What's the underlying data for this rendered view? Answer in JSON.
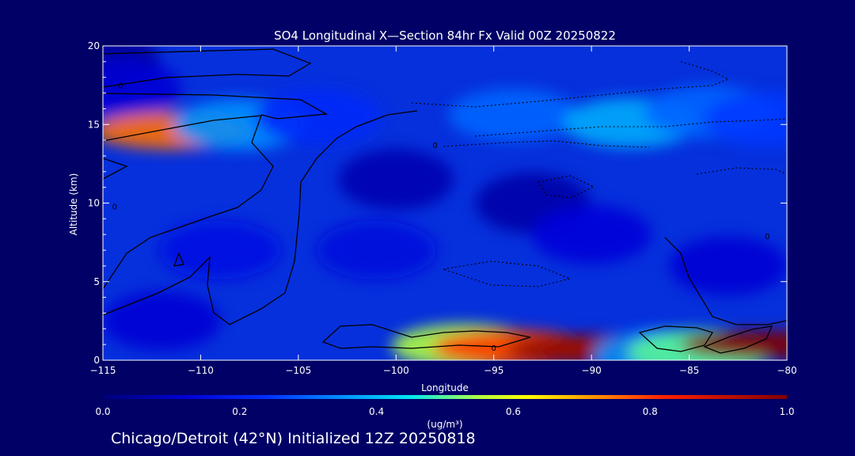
{
  "title": "SO4 Longitudinal X—Section 84hr  Fx Valid 00Z 20250822",
  "footer": "Chicago/Detroit (42°N) Initialized 12Z 20250818",
  "chart_data": {
    "type": "heatmap",
    "title": "SO4 Longitudinal X—Section 84hr  Fx Valid 00Z 20250822",
    "xlabel": "Longitude",
    "ylabel": "Altitude (km)",
    "xlim": [
      -115,
      -80
    ],
    "ylim": [
      0,
      20
    ],
    "x_ticks": [
      -115,
      -110,
      -105,
      -100,
      -95,
      -90,
      -85,
      -80
    ],
    "x_tick_labels": [
      "−115",
      "−110",
      "−105",
      "−100",
      "−95",
      "−90",
      "−85",
      "−80"
    ],
    "y_ticks": [
      0,
      5,
      10,
      15,
      20
    ],
    "y_tick_labels": [
      "0",
      "5",
      "10",
      "15",
      "20"
    ],
    "colorbar": {
      "min": 0.0,
      "max": 1.0,
      "ticks": [
        0.0,
        0.2,
        0.4,
        0.6,
        0.8,
        1.0
      ],
      "tick_labels": [
        "0.0",
        "0.2",
        "0.4",
        "0.6",
        "0.8",
        "1.0"
      ],
      "units": "(ug/m³)"
    },
    "contour_labels": [
      {
        "text": "0",
        "lon": -114.1,
        "alt": 17.5
      },
      {
        "text": "0",
        "lon": -98.0,
        "alt": 13.7
      },
      {
        "text": "0",
        "lon": -114.4,
        "alt": 9.8
      },
      {
        "text": "0",
        "lon": -81.0,
        "alt": 7.9
      },
      {
        "text": "0",
        "lon": -95.0,
        "alt": 0.8
      }
    ],
    "features": [
      {
        "lon": -115,
        "alt": 19.0,
        "value": 0.04
      },
      {
        "lon": -114,
        "alt": 17.3,
        "value": 0.12
      },
      {
        "lon": -111.5,
        "alt": 14.6,
        "value": 0.75
      },
      {
        "lon": -108,
        "alt": 15.0,
        "value": 0.35
      },
      {
        "lon": -104,
        "alt": 15.5,
        "value": 0.22
      },
      {
        "lon": -94,
        "alt": 15.6,
        "value": 0.3
      },
      {
        "lon": -88,
        "alt": 15.1,
        "value": 0.38
      },
      {
        "lon": -84,
        "alt": 15.8,
        "value": 0.3
      },
      {
        "lon": -81,
        "alt": 15.3,
        "value": 0.25
      },
      {
        "lon": -100,
        "alt": 11.5,
        "value": 0.07
      },
      {
        "lon": -93,
        "alt": 10.0,
        "value": 0.06
      },
      {
        "lon": -109,
        "alt": 7.0,
        "value": 0.16
      },
      {
        "lon": -101,
        "alt": 7.0,
        "value": 0.14
      },
      {
        "lon": -90,
        "alt": 8.0,
        "value": 0.13
      },
      {
        "lon": -83,
        "alt": 6.0,
        "value": 0.12
      },
      {
        "lon": -112,
        "alt": 2.5,
        "value": 0.12
      },
      {
        "lon": -96.5,
        "alt": 0.9,
        "value": 0.55
      },
      {
        "lon": -94,
        "alt": 0.8,
        "value": 0.8
      },
      {
        "lon": -90,
        "alt": 0.7,
        "value": 0.98
      },
      {
        "lon": -86.5,
        "alt": 0.3,
        "value": 0.35
      },
      {
        "lon": -84.5,
        "alt": 0.5,
        "value": 0.5
      },
      {
        "lon": -81,
        "alt": 1.0,
        "value": 1.0
      }
    ]
  }
}
